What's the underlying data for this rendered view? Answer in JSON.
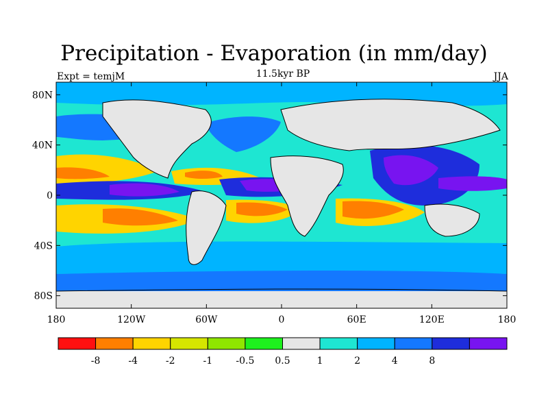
{
  "figure": {
    "title": "Precipitation - Evaporation (in mm/day)",
    "subtitle": "11.5kyr BP",
    "left_label": "Expt = temjM",
    "right_label": "JJA"
  },
  "axes": {
    "x_ticks": [
      {
        "value": -180,
        "label": "180"
      },
      {
        "value": -120,
        "label": "120W"
      },
      {
        "value": -60,
        "label": "60W"
      },
      {
        "value": 0,
        "label": "0"
      },
      {
        "value": 60,
        "label": "60E"
      },
      {
        "value": 120,
        "label": "120E"
      },
      {
        "value": 180,
        "label": "180"
      }
    ],
    "y_ticks": [
      {
        "value": 80,
        "label": "80N"
      },
      {
        "value": 40,
        "label": "40N"
      },
      {
        "value": 0,
        "label": "0"
      },
      {
        "value": -40,
        "label": "40S"
      },
      {
        "value": -80,
        "label": "80S"
      }
    ],
    "lon_range": [
      -180,
      180
    ],
    "lat_range": [
      -90,
      90
    ]
  },
  "colorbar": {
    "colors": [
      "#ff1010",
      "#ff7f00",
      "#ffd400",
      "#d6e600",
      "#8fe600",
      "#1ef01e",
      "#e6e6e6",
      "#1ee6d2",
      "#00b4ff",
      "#1478ff",
      "#1e2ddc",
      "#7814f0"
    ],
    "labels": [
      "-8",
      "-4",
      "-2",
      "-1",
      "-0.5",
      "0.5",
      "1",
      "2",
      "4",
      "8"
    ]
  },
  "colors": {
    "ocean_default": "#1ee6d2",
    "land": "#e6e6e6",
    "coastline": "#000000"
  }
}
